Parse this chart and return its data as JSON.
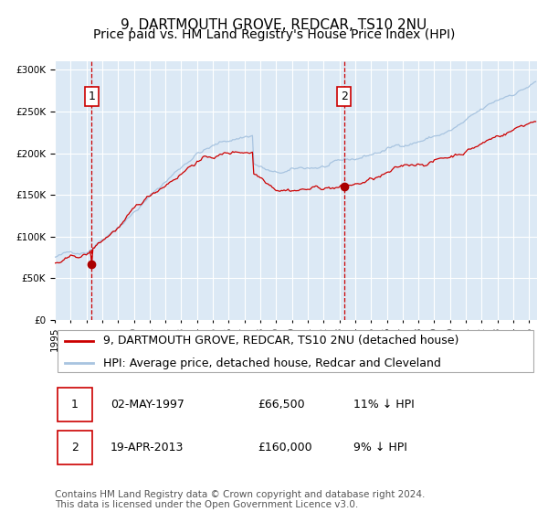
{
  "title": "9, DARTMOUTH GROVE, REDCAR, TS10 2NU",
  "subtitle": "Price paid vs. HM Land Registry's House Price Index (HPI)",
  "legend_line1": "9, DARTMOUTH GROVE, REDCAR, TS10 2NU (detached house)",
  "legend_line2": "HPI: Average price, detached house, Redcar and Cleveland",
  "annotation1_date": "02-MAY-1997",
  "annotation1_price": "£66,500",
  "annotation1_hpi": "11% ↓ HPI",
  "annotation1_year": 1997.33,
  "annotation1_value": 66500,
  "annotation2_date": "19-APR-2013",
  "annotation2_price": "£160,000",
  "annotation2_hpi": "9% ↓ HPI",
  "annotation2_year": 2013.29,
  "annotation2_value": 160000,
  "hpi_color": "#a8c4e0",
  "price_color": "#cc0000",
  "dot_color": "#aa0000",
  "bg_color": "#dce9f5",
  "grid_color": "#ffffff",
  "vline_color": "#cc0000",
  "box_color": "#cc0000",
  "ylim": [
    0,
    310000
  ],
  "xlim_start": 1995.0,
  "xlim_end": 2025.5,
  "footer": "Contains HM Land Registry data © Crown copyright and database right 2024.\nThis data is licensed under the Open Government Licence v3.0.",
  "title_fontsize": 11,
  "subtitle_fontsize": 10,
  "tick_fontsize": 7.5,
  "legend_fontsize": 9,
  "footer_fontsize": 7.5
}
